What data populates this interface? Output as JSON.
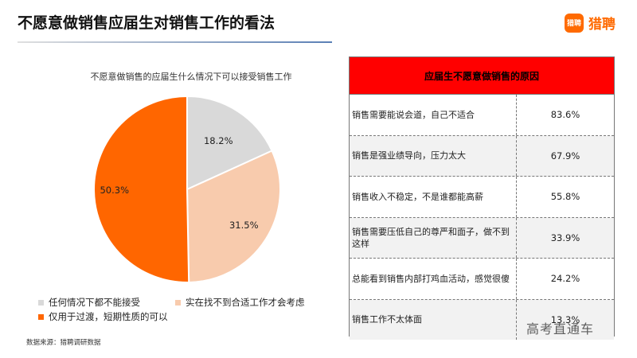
{
  "header": {
    "title": "不愿意做销售应届生对销售工作的看法",
    "logo_icon": "猎聘",
    "logo_text": "猎聘",
    "brand_color": "#ff6a00"
  },
  "chart_data": {
    "type": "pie",
    "title": "不愿意做销售的应届生什么情况下可以接受销售工作",
    "slices": [
      {
        "label": "任何情况下都不能接受",
        "value": 18.2,
        "display": "18.2%",
        "color": "#d9d9d9"
      },
      {
        "label": "实在找不到合适工作才会考虑",
        "value": 31.5,
        "display": "31.5%",
        "color": "#f8cbad"
      },
      {
        "label": "仅用于过渡，短期性质的可以",
        "value": 50.3,
        "display": "50.3%",
        "color": "#ff6600"
      }
    ],
    "legend_position": "bottom"
  },
  "source": "数据来源：猎聘调研数据",
  "table": {
    "header": "应届生不愿意做销售的原因",
    "header_color": "#ff0000",
    "rows": [
      {
        "reason": "销售需要能说会道，自己不适合",
        "pct": "83.6%"
      },
      {
        "reason": "销售是强业绩导向，压力太大",
        "pct": "67.9%"
      },
      {
        "reason": "销售收入不稳定，不是谁都能高薪",
        "pct": "55.8%"
      },
      {
        "reason": "销售需要压低自己的尊严和面子，做不到这样",
        "pct": "33.9%"
      },
      {
        "reason": "总能看到销售内部打鸡血活动，感觉很傻",
        "pct": "24.2%"
      },
      {
        "reason": "销售工作不太体面",
        "pct": "13.3%"
      }
    ]
  },
  "watermark": "高考直通车"
}
